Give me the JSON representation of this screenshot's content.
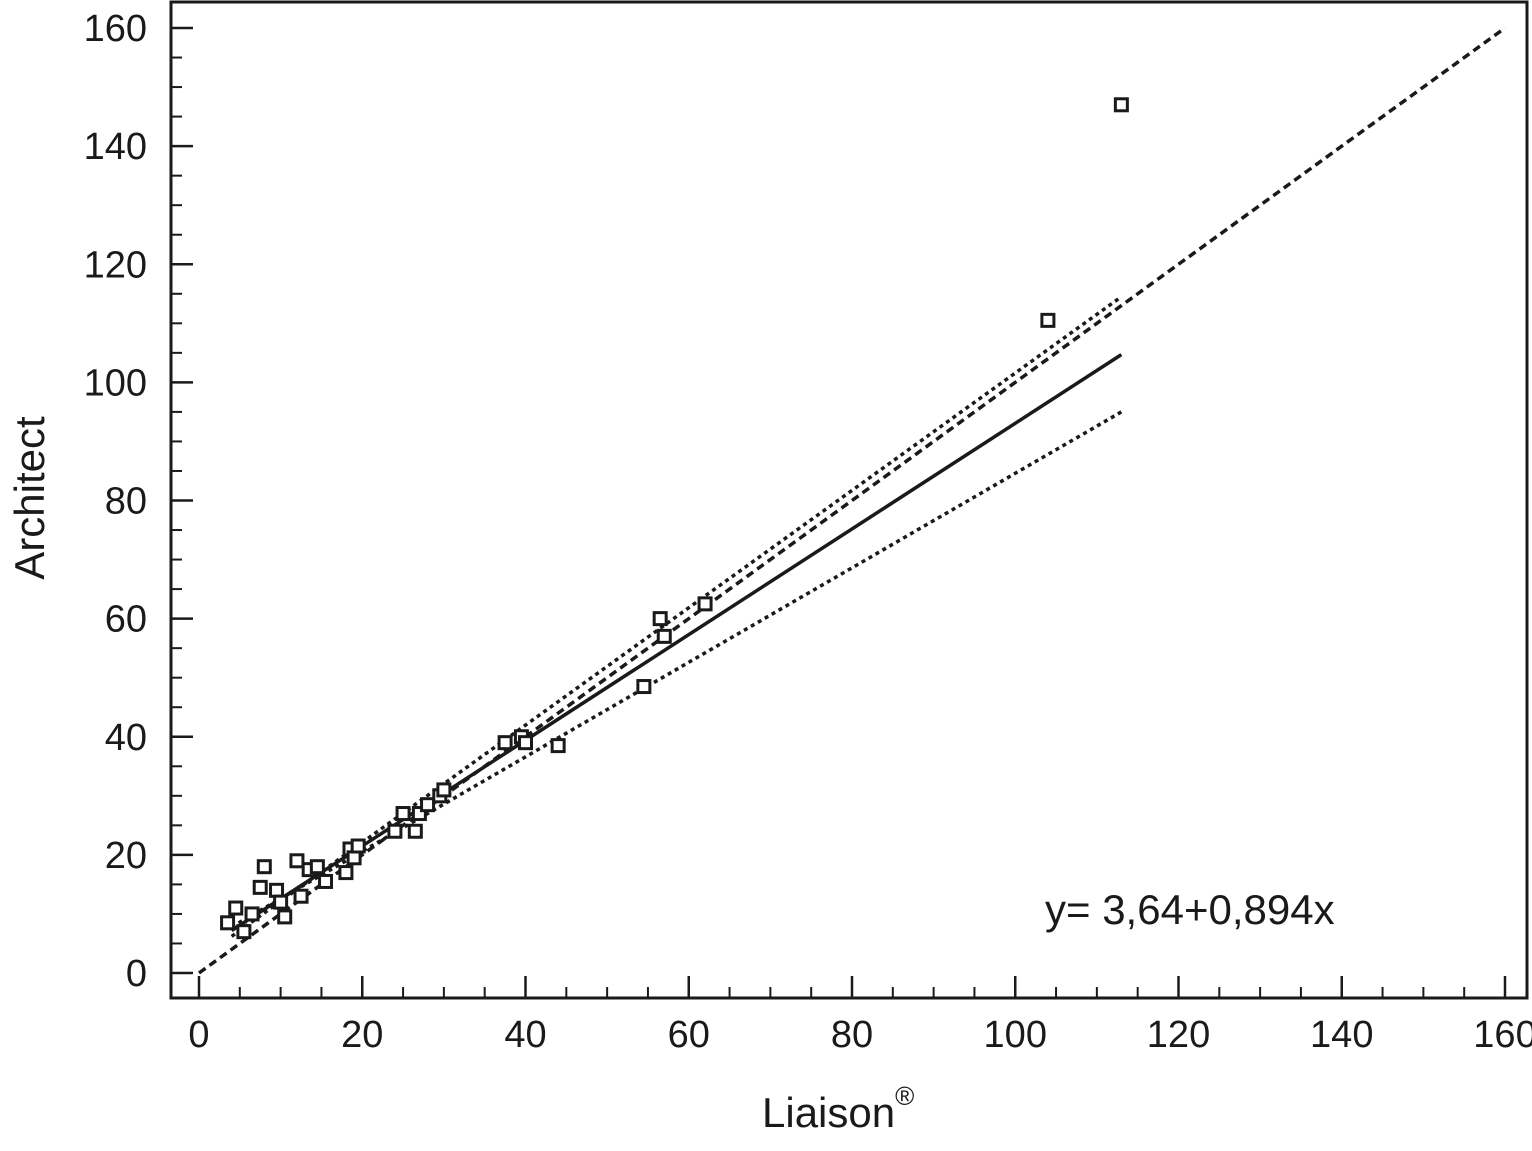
{
  "chart_data": {
    "type": "scatter",
    "title": "",
    "xlabel": "Liaison",
    "xlabel_superscript": "®",
    "ylabel": "Architect",
    "xlim": [
      -4,
      162
    ],
    "ylim": [
      -4,
      164
    ],
    "x_ticks": [
      0,
      20,
      40,
      60,
      80,
      100,
      120,
      140,
      160
    ],
    "y_ticks": [
      0,
      20,
      40,
      60,
      80,
      100,
      120,
      140,
      160
    ],
    "x_tick_labels": [
      "0",
      "20",
      "40",
      "60",
      "80",
      "100",
      "120",
      "140",
      "160"
    ],
    "y_tick_labels": [
      "0",
      "20",
      "40",
      "60",
      "80",
      "100",
      "120",
      "140",
      "160"
    ],
    "minor_tick_step": 5,
    "grid": false,
    "legend": "none",
    "marker": "open-square",
    "annotation": "y= 3,64+0,894x",
    "series": [
      {
        "values": [
          {
            "x": 3.5,
            "y": 8.5
          },
          {
            "x": 4.5,
            "y": 11
          },
          {
            "x": 5.5,
            "y": 7
          },
          {
            "x": 6.5,
            "y": 10
          },
          {
            "x": 7.5,
            "y": 14.5
          },
          {
            "x": 8,
            "y": 18
          },
          {
            "x": 9.5,
            "y": 14
          },
          {
            "x": 10,
            "y": 12
          },
          {
            "x": 10.5,
            "y": 9.5
          },
          {
            "x": 12,
            "y": 19
          },
          {
            "x": 12.5,
            "y": 13
          },
          {
            "x": 13.5,
            "y": 17.5
          },
          {
            "x": 14.5,
            "y": 18
          },
          {
            "x": 15.5,
            "y": 15.5
          },
          {
            "x": 18,
            "y": 17
          },
          {
            "x": 18.5,
            "y": 21
          },
          {
            "x": 19,
            "y": 19.5
          },
          {
            "x": 19.5,
            "y": 21.5
          },
          {
            "x": 24,
            "y": 24
          },
          {
            "x": 25,
            "y": 27
          },
          {
            "x": 26.5,
            "y": 24
          },
          {
            "x": 27,
            "y": 27
          },
          {
            "x": 28,
            "y": 28.5
          },
          {
            "x": 29.5,
            "y": 30
          },
          {
            "x": 30,
            "y": 31
          },
          {
            "x": 37.5,
            "y": 39
          },
          {
            "x": 39.5,
            "y": 40
          },
          {
            "x": 40,
            "y": 39
          },
          {
            "x": 44,
            "y": 38.5
          },
          {
            "x": 54.5,
            "y": 48.5
          },
          {
            "x": 56.5,
            "y": 60
          },
          {
            "x": 57,
            "y": 57
          },
          {
            "x": 62,
            "y": 62.5
          },
          {
            "x": 104,
            "y": 110.5
          },
          {
            "x": 113,
            "y": 147
          }
        ]
      }
    ],
    "lines": [
      {
        "kind": "regression",
        "style": "solid",
        "x": [
          4,
          113
        ],
        "y": [
          7.2,
          104.7
        ]
      },
      {
        "kind": "confidence-upper",
        "style": "dotted",
        "x": [
          4,
          113
        ],
        "y": [
          6.2,
          114.5
        ]
      },
      {
        "kind": "confidence-lower",
        "style": "dotted",
        "x": [
          4,
          113
        ],
        "y": [
          7.8,
          95
        ]
      },
      {
        "kind": "identity",
        "style": "dashed",
        "x": [
          0,
          160
        ],
        "y": [
          0,
          160
        ]
      }
    ]
  }
}
